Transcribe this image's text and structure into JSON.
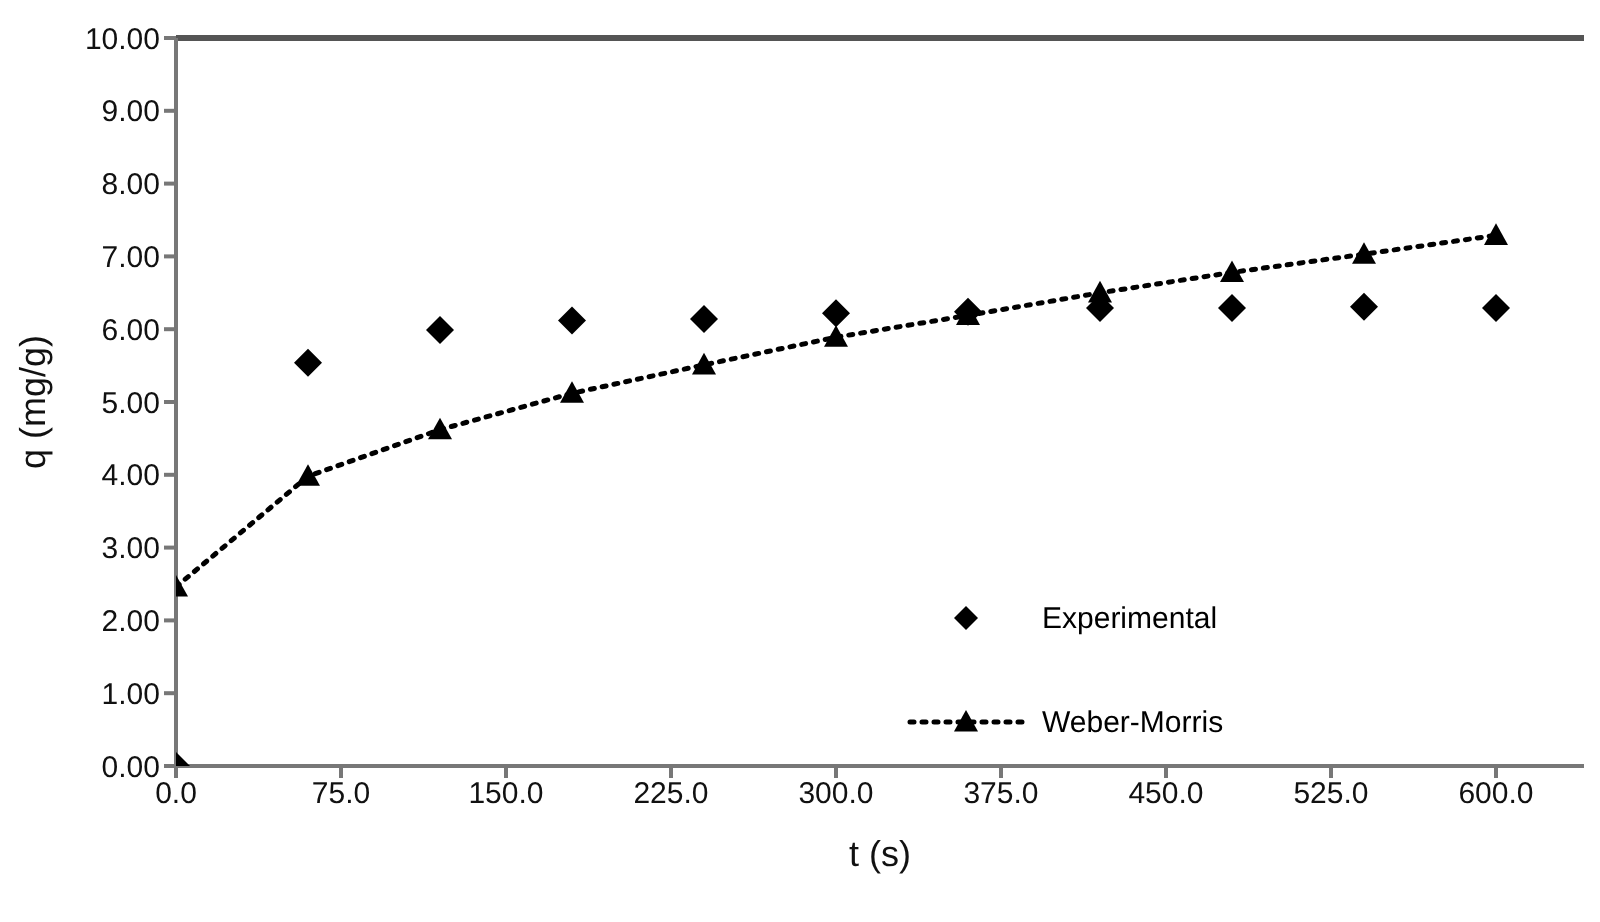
{
  "chart_data": {
    "type": "scatter",
    "xlabel": "t (s)",
    "ylabel": "q (mg/g)",
    "x": [
      0,
      60,
      120,
      180,
      240,
      300,
      360,
      420,
      480,
      540,
      600
    ],
    "series": [
      {
        "name": "Experimental",
        "marker": "diamond",
        "color": "#000000",
        "values": [
          0,
          5.54,
          5.99,
          6.12,
          6.14,
          6.22,
          6.24,
          6.29,
          6.29,
          6.31,
          6.29
        ]
      },
      {
        "name": "Weber-Morris",
        "type": "line",
        "marker": "triangle",
        "line_style": "dotted",
        "color": "#000000",
        "values": [
          2.46,
          3.98,
          4.62,
          5.12,
          5.51,
          5.89,
          6.19,
          6.5,
          6.78,
          7.03,
          7.29
        ]
      }
    ],
    "xlim": [
      0,
      640
    ],
    "xticks": [
      {
        "value": 0,
        "label": "0.0"
      },
      {
        "value": 75,
        "label": "75.0"
      },
      {
        "value": 150,
        "label": "150.0"
      },
      {
        "value": 225,
        "label": "225.0"
      },
      {
        "value": 300,
        "label": "300.0"
      },
      {
        "value": 375,
        "label": "375.0"
      },
      {
        "value": 450,
        "label": "450.0"
      },
      {
        "value": 525,
        "label": "525.0"
      },
      {
        "value": 600,
        "label": "600.0"
      }
    ],
    "ylim": [
      0,
      10
    ],
    "yticks": [
      {
        "value": 0,
        "label": "0.00"
      },
      {
        "value": 1,
        "label": "1.00"
      },
      {
        "value": 2,
        "label": "2.00"
      },
      {
        "value": 3,
        "label": "3.00"
      },
      {
        "value": 4,
        "label": "4.00"
      },
      {
        "value": 5,
        "label": "5.00"
      },
      {
        "value": 6,
        "label": "6.00"
      },
      {
        "value": 7,
        "label": "7.00"
      },
      {
        "value": 8,
        "label": "8.00"
      },
      {
        "value": 9,
        "label": "9.00"
      },
      {
        "value": 10,
        "label": "10.00"
      }
    ],
    "grid": false,
    "legend": "bottom right"
  }
}
